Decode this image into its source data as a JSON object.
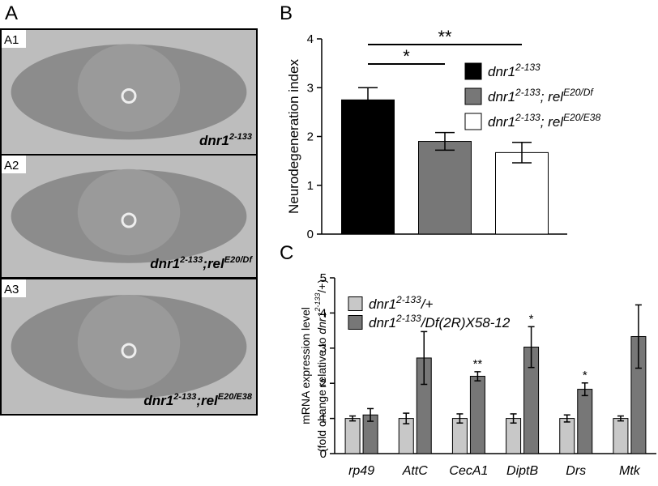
{
  "panels": {
    "A": {
      "label": "A",
      "images": [
        {
          "label": "A1",
          "caption": [
            {
              "text": "dnr1"
            },
            {
              "text": "2-133",
              "sup": true
            }
          ]
        },
        {
          "label": "A2",
          "caption": [
            {
              "text": "dnr1"
            },
            {
              "text": "2-133",
              "sup": true
            },
            {
              "text": ";rel"
            },
            {
              "text": "E20/Df",
              "sup": true
            }
          ]
        },
        {
          "label": "A3",
          "caption": [
            {
              "text": "dnr1"
            },
            {
              "text": "2-133",
              "sup": true
            },
            {
              "text": ";rel"
            },
            {
              "text": "E20/E38",
              "sup": true
            }
          ]
        }
      ]
    }
  },
  "chart_data": [
    {
      "type": "bar",
      "panel_label": "B",
      "ylabel": [
        [
          {
            "text": "Neurodegeneration index"
          }
        ]
      ],
      "categories": [
        null
      ],
      "series": [
        {
          "name": [
            {
              "text": "dnr1"
            },
            {
              "text": "2-133",
              "sup": true
            }
          ],
          "color": "#000000",
          "values": [
            2.75
          ],
          "errors": [
            0.25
          ]
        },
        {
          "name": [
            {
              "text": "dnr1"
            },
            {
              "text": "2-133",
              "sup": true
            },
            {
              "text": "; rel"
            },
            {
              "text": "E20/Df",
              "sup": true
            }
          ],
          "color": "#777777",
          "values": [
            1.9
          ],
          "errors": [
            0.18
          ]
        },
        {
          "name": [
            {
              "text": "dnr1"
            },
            {
              "text": "2-133",
              "sup": true
            },
            {
              "text": "; rel"
            },
            {
              "text": "E20/E38",
              "sup": true
            }
          ],
          "color": "#ffffff",
          "values": [
            1.67
          ],
          "errors": [
            0.21
          ]
        }
      ],
      "annotations": [
        {
          "text": "**",
          "between": [
            0,
            2
          ]
        },
        {
          "text": "*",
          "between": [
            0,
            1
          ]
        }
      ],
      "ylim": [
        0,
        4
      ],
      "yticks": [
        0,
        1,
        2,
        3,
        4
      ]
    },
    {
      "type": "bar",
      "panel_label": "C",
      "ylabel": [
        [
          {
            "text": "mRNA expression level"
          }
        ],
        [
          {
            "text": "(fold change relative to "
          },
          {
            "text": "dnr1",
            "italic": true
          },
          {
            "text": "2-133",
            "sup": true,
            "italic": true
          },
          {
            "text": "/+)"
          }
        ]
      ],
      "categories": [
        "rp49",
        "AttC",
        "CecA1",
        "DiptB",
        "Drs",
        "Mtk"
      ],
      "series": [
        {
          "name": [
            {
              "text": "dnr1"
            },
            {
              "text": "2-133",
              "sup": true
            },
            {
              "text": "/+"
            }
          ],
          "color": "#c8c8c8",
          "values": [
            1,
            1,
            1,
            1,
            1,
            1
          ],
          "errors": [
            0.07,
            0.15,
            0.13,
            0.13,
            0.1,
            0.07
          ]
        },
        {
          "name": [
            {
              "text": "dnr1"
            },
            {
              "text": "2-133",
              "sup": true
            },
            {
              "text": "/Df(2R)X58-12"
            }
          ],
          "color": "#777777",
          "values": [
            1.1,
            2.72,
            2.2,
            3.03,
            1.83,
            3.33
          ],
          "errors": [
            0.18,
            0.75,
            0.13,
            0.58,
            0.18,
            0.9
          ],
          "significance": [
            null,
            null,
            "**",
            "*",
            "*",
            null
          ]
        }
      ],
      "ylim": [
        0,
        5
      ],
      "yticks": [
        0,
        1,
        2,
        3,
        4,
        5
      ]
    }
  ]
}
